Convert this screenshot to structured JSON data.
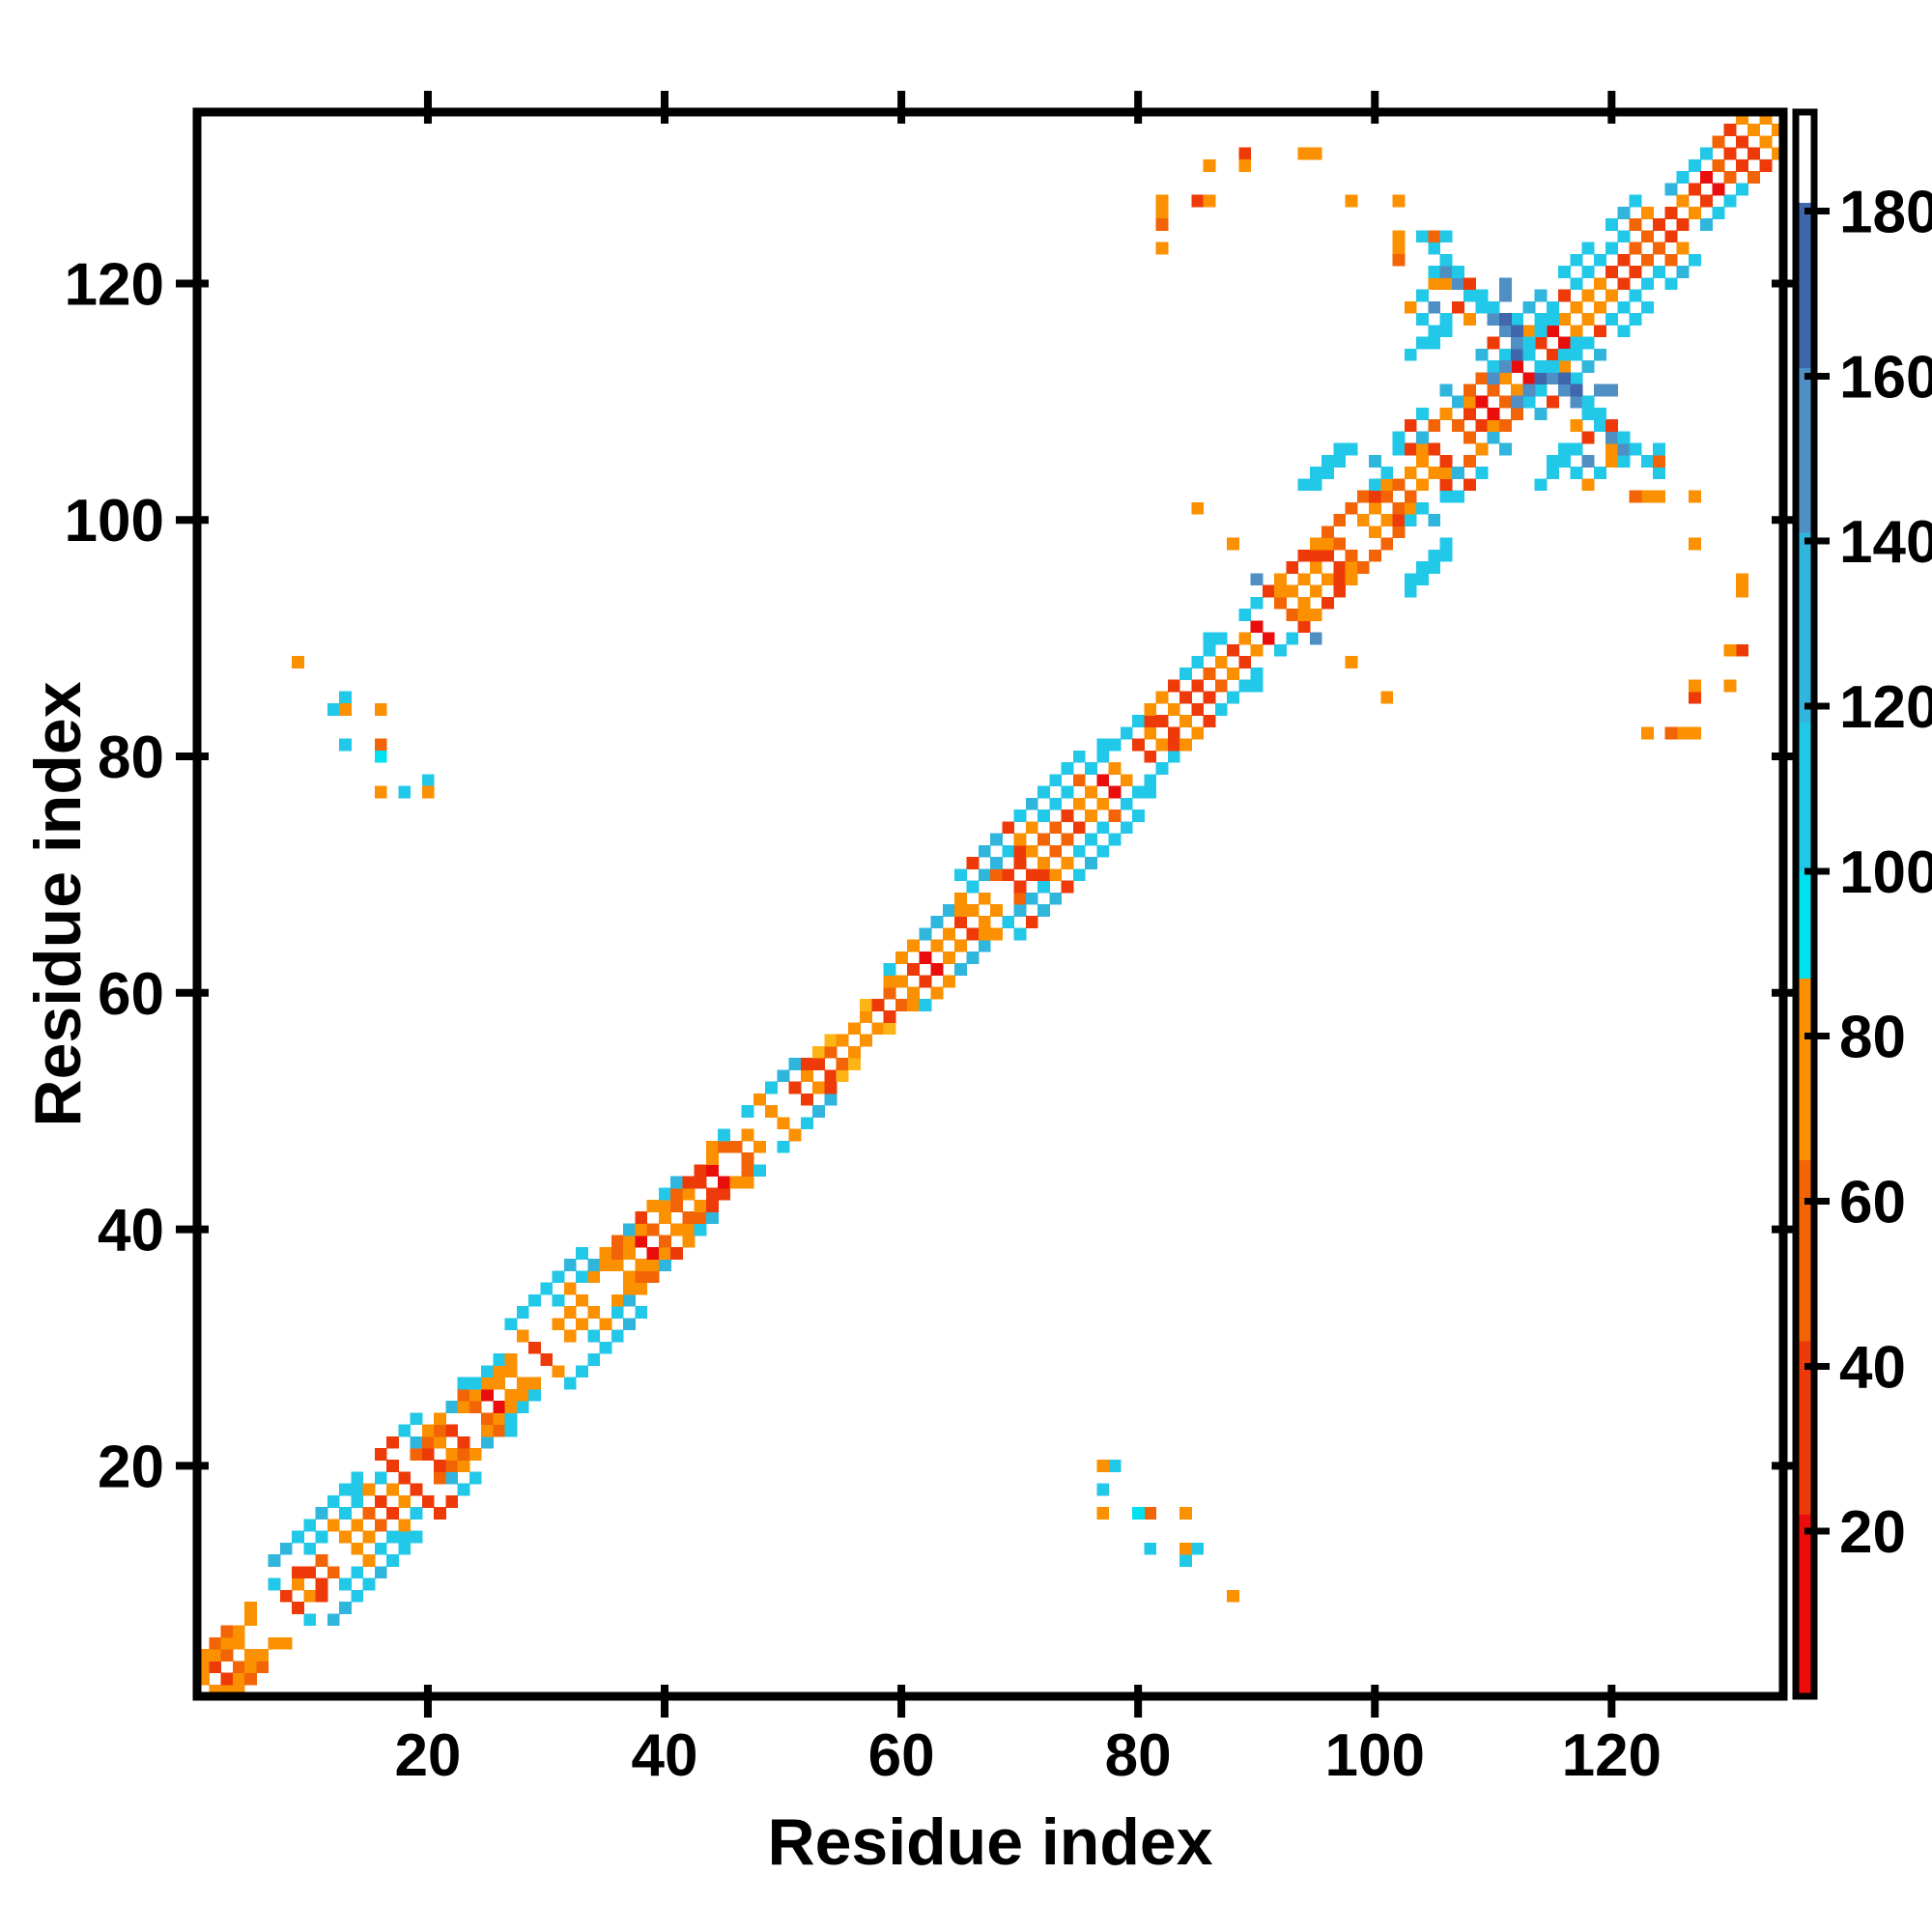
{
  "figure": {
    "xlabel": "Residue index",
    "ylabel": "Residue index"
  },
  "chart_data": {
    "type": "heatmap",
    "title": "",
    "xlabel": "Residue index",
    "ylabel": "Residue index",
    "x_ticks": [
      20,
      40,
      60,
      80,
      100,
      120
    ],
    "y_ticks": [
      20,
      40,
      60,
      80,
      100,
      120
    ],
    "axis_range": [
      0.5,
      134.5
    ],
    "n_residues": 134,
    "symmetric": true,
    "grid": false,
    "background_color": "#ffffff",
    "value_range": [
      0,
      192
    ],
    "colorbar": {
      "position": "right",
      "ticks": [
        20,
        40,
        60,
        80,
        100,
        120,
        140,
        160,
        180
      ],
      "bands": [
        {
          "from": 0,
          "to": 22,
          "color": "#ea0d0c"
        },
        {
          "from": 22,
          "to": 43,
          "color": "#ee3a08"
        },
        {
          "from": 43,
          "to": 65,
          "color": "#f26406"
        },
        {
          "from": 65,
          "to": 87,
          "color": "#fb9000"
        },
        {
          "from": 87,
          "to": 100,
          "color": "#00e1f0"
        },
        {
          "from": 100,
          "to": 118,
          "color": "#22c8e8"
        },
        {
          "from": 118,
          "to": 141,
          "color": "#30b6dc"
        },
        {
          "from": 141,
          "to": 161,
          "color": "#4f8fc4"
        },
        {
          "from": 161,
          "to": 181,
          "color": "#4066ab"
        },
        {
          "from": 181,
          "to": 192,
          "color": "#ffffff"
        }
      ]
    },
    "palette": {
      "O": "#fb9000",
      "DO": "#f26406",
      "RO": "#ee3a08",
      "R": "#e90d0c",
      "Y": "#fdb416",
      "C": "#22c8e8",
      "TC": "#30b6dc",
      "BC": "#00e1f0",
      "SB": "#4f8fc4",
      "SL": "#4066ab"
    },
    "band_regions": [
      {
        "s": 1,
        "e": 6,
        "w": 3,
        "f": "warm",
        "dense": 1
      },
      {
        "s": 7,
        "e": 19,
        "w": 5,
        "f": "cyan"
      },
      {
        "s": 20,
        "e": 26,
        "w": 4,
        "f": "cyan",
        "dense": 1
      },
      {
        "s": 27,
        "e": 33,
        "w": 5,
        "f": "cyan"
      },
      {
        "s": 34,
        "e": 44,
        "w": 4,
        "f": "cyan",
        "dense": 1
      },
      {
        "s": 45,
        "e": 51,
        "w": 3,
        "f": "cyan"
      },
      {
        "s": 52,
        "e": 58,
        "w": 2,
        "f": "warm",
        "dense": 1,
        "light": 1
      },
      {
        "s": 59,
        "e": 64,
        "w": 3,
        "f": "cyan"
      },
      {
        "s": 65,
        "e": 75,
        "w": 5,
        "f": "cyan"
      },
      {
        "s": 76,
        "e": 83,
        "w": 4,
        "f": "cyan"
      },
      {
        "s": 84,
        "e": 91,
        "w": 4,
        "f": "cyan"
      },
      {
        "s": 92,
        "e": 99,
        "w": 4,
        "f": "warm",
        "dense": 1
      },
      {
        "s": 100,
        "e": 122,
        "w": 5,
        "f": "cyan"
      },
      {
        "s": 123,
        "e": 133,
        "w": 4,
        "f": "cyan"
      }
    ],
    "extra_cells": [
      [
        9,
        88,
        "O"
      ],
      [
        12,
        84,
        "C"
      ],
      [
        13,
        85,
        "C"
      ],
      [
        13,
        84,
        "O"
      ],
      [
        16,
        84,
        "O"
      ],
      [
        13,
        81,
        "C"
      ],
      [
        16,
        81,
        "DO"
      ],
      [
        16,
        80,
        "BC"
      ],
      [
        16,
        77,
        "O"
      ],
      [
        18,
        77,
        "C"
      ],
      [
        20,
        78,
        "C"
      ],
      [
        20,
        77,
        "O"
      ],
      [
        66,
        71,
        "RO"
      ],
      [
        85,
        101,
        "O"
      ],
      [
        88,
        98,
        "O"
      ],
      [
        90,
        95,
        "SB"
      ],
      [
        94,
        103,
        "C"
      ],
      [
        95,
        103,
        "C"
      ],
      [
        95,
        104,
        "C"
      ],
      [
        96,
        104,
        "C"
      ],
      [
        96,
        105,
        "C"
      ],
      [
        97,
        105,
        "C"
      ],
      [
        97,
        106,
        "C"
      ],
      [
        98,
        106,
        "C"
      ],
      [
        82,
        127,
        "O"
      ],
      [
        82,
        126,
        "O"
      ],
      [
        82,
        125,
        "DO"
      ],
      [
        82,
        123,
        "O"
      ],
      [
        85,
        127,
        "RO"
      ],
      [
        86,
        127,
        "O"
      ],
      [
        86,
        130,
        "O"
      ],
      [
        89,
        131,
        "RO"
      ],
      [
        89,
        130,
        "O"
      ],
      [
        94,
        131,
        "O"
      ],
      [
        95,
        131,
        "O"
      ],
      [
        98,
        127,
        "O"
      ],
      [
        102,
        127,
        "O"
      ],
      [
        102,
        124,
        "O"
      ],
      [
        102,
        123,
        "O"
      ],
      [
        102,
        122,
        "DO"
      ],
      [
        103,
        114,
        "C"
      ],
      [
        103,
        118,
        "O"
      ],
      [
        104,
        115,
        "C"
      ],
      [
        104,
        117,
        "C"
      ],
      [
        104,
        119,
        "C"
      ],
      [
        104,
        124,
        "C"
      ],
      [
        105,
        115,
        "C"
      ],
      [
        105,
        116,
        "C"
      ],
      [
        105,
        118,
        "SB"
      ],
      [
        105,
        120,
        "O"
      ],
      [
        105,
        121,
        "C"
      ],
      [
        105,
        123,
        "C"
      ],
      [
        105,
        124,
        "DO"
      ],
      [
        106,
        116,
        "C"
      ],
      [
        106,
        117,
        "C"
      ],
      [
        106,
        120,
        "O"
      ],
      [
        106,
        121,
        "SB"
      ],
      [
        106,
        122,
        "C"
      ],
      [
        106,
        124,
        "C"
      ],
      [
        107,
        118,
        "RO"
      ],
      [
        107,
        120,
        "SB"
      ],
      [
        107,
        121,
        "C"
      ],
      [
        108,
        117,
        "O"
      ],
      [
        108,
        119,
        "C"
      ],
      [
        108,
        120,
        "RO"
      ],
      [
        109,
        118,
        "C"
      ],
      [
        109,
        119,
        "C"
      ],
      [
        110,
        112,
        "SB"
      ],
      [
        110,
        117,
        "SB"
      ],
      [
        110,
        118,
        "C"
      ],
      [
        111,
        113,
        "SB"
      ],
      [
        111,
        116,
        "SB"
      ],
      [
        111,
        117,
        "SL"
      ],
      [
        111,
        119,
        "SB"
      ],
      [
        111,
        120,
        "SB"
      ],
      [
        112,
        114,
        "SL"
      ],
      [
        112,
        115,
        "SB"
      ],
      [
        112,
        116,
        "SL"
      ],
      [
        113,
        114,
        "C"
      ],
      [
        113,
        115,
        "C"
      ],
      [
        114,
        116,
        "C"
      ],
      [
        114,
        117,
        "C"
      ],
      [
        115,
        117,
        "C"
      ],
      [
        115,
        118,
        "C"
      ]
    ]
  }
}
